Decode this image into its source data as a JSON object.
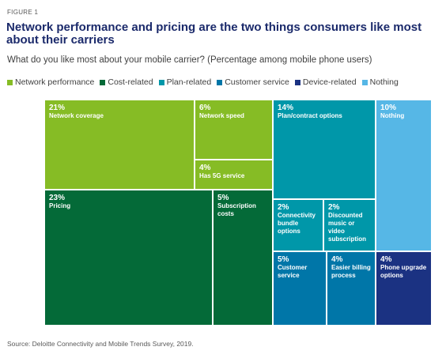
{
  "figure_label": "FIGURE 1",
  "title": "Network performance and pricing are the two things consumers like most about their carriers",
  "subtitle": "What do you like most about your mobile carrier? (Percentage among mobile phone users)",
  "source": "Source: Deloitte Connectivity and Mobile Trends Survey, 2019.",
  "colors": {
    "network_performance": "#86bc25",
    "cost_related": "#046a38",
    "plan_related": "#0097a9",
    "customer_service": "#0076a8",
    "device_related": "#1b3282",
    "nothing": "#56b7e6"
  },
  "chart_data": {
    "type": "treemap",
    "legend": [
      {
        "name": "Network performance",
        "color": "#86bc25"
      },
      {
        "name": "Cost-related",
        "color": "#046a38"
      },
      {
        "name": "Plan-related",
        "color": "#0097a9"
      },
      {
        "name": "Customer service",
        "color": "#0076a8"
      },
      {
        "name": "Device-related",
        "color": "#1b3282"
      },
      {
        "name": "Nothing",
        "color": "#56b7e6"
      }
    ],
    "items": [
      {
        "label": "Network coverage",
        "value": "21%",
        "category": "Network performance"
      },
      {
        "label": "Network speed",
        "value": "6%",
        "category": "Network performance"
      },
      {
        "label": "Has 5G service",
        "value": "4%",
        "category": "Network performance"
      },
      {
        "label": "Pricing",
        "value": "23%",
        "category": "Cost-related"
      },
      {
        "label": "Subscription costs",
        "value": "5%",
        "category": "Cost-related"
      },
      {
        "label": "Plan/contract options",
        "value": "14%",
        "category": "Plan-related"
      },
      {
        "label": "Connectivity bundle options",
        "value": "2%",
        "category": "Plan-related"
      },
      {
        "label": "Discounted music or video subscription",
        "value": "2%",
        "category": "Plan-related"
      },
      {
        "label": "Customer service",
        "value": "5%",
        "category": "Customer service"
      },
      {
        "label": "Easier billing process",
        "value": "4%",
        "category": "Customer service"
      },
      {
        "label": "Phone upgrade options",
        "value": "4%",
        "category": "Device-related"
      },
      {
        "label": "Nothing",
        "value": "10%",
        "category": "Nothing"
      }
    ]
  }
}
